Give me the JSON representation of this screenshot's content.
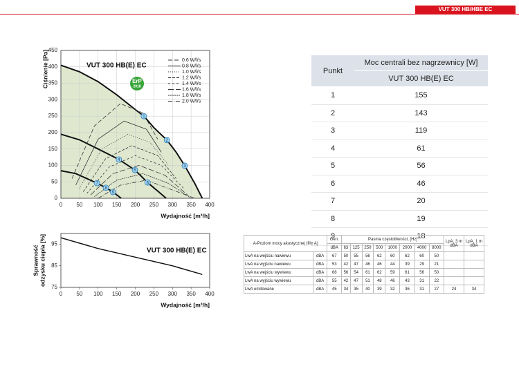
{
  "header": {
    "title": "VUT 300 HB/HBE EC"
  },
  "chart_data": [
    {
      "type": "line",
      "title": "VUT 300 HB(E) EC",
      "x_label": "Wydajność [m³/h]",
      "y_label": "Ciśnienie [Pa]",
      "badge": [
        "ErP",
        "2018"
      ],
      "xlim": [
        0,
        400
      ],
      "ylim": [
        0,
        450
      ],
      "xticks": [
        0,
        50,
        100,
        150,
        200,
        250,
        300,
        350,
        400
      ],
      "yticks": [
        0,
        50,
        100,
        150,
        200,
        250,
        300,
        350,
        400,
        450
      ],
      "grid": true,
      "area_color": "#dfe8cf",
      "curves": [
        {
          "color": "#111111",
          "x": [
            0,
            50,
            100,
            150,
            200,
            223,
            250,
            285,
            310,
            333,
            360,
            380
          ],
          "values": [
            405,
            385,
            355,
            315,
            270,
            250,
            215,
            177,
            140,
            99,
            45,
            0
          ]
        },
        {
          "color": "#111111",
          "x": [
            0,
            50,
            100,
            156,
            199,
            233,
            260,
            283
          ],
          "values": [
            195,
            178,
            150,
            118,
            86,
            48,
            22,
            0
          ]
        },
        {
          "color": "#111111",
          "x": [
            0,
            40,
            97,
            121,
            140,
            162
          ],
          "values": [
            84,
            75,
            46,
            32,
            19,
            0
          ]
        }
      ],
      "series": [
        {
          "name": "0.6 W/l/s",
          "color": "#333333",
          "dash": "6 3",
          "x": [
            30,
            90,
            160,
            220,
            260
          ],
          "values": [
            60,
            220,
            288,
            260,
            180
          ]
        },
        {
          "name": "0.8 W/l/s",
          "color": "#333333",
          "dash": "",
          "x": [
            40,
            100,
            170,
            230,
            270
          ],
          "values": [
            40,
            180,
            235,
            210,
            140
          ]
        },
        {
          "name": "1.0 W/l/s",
          "color": "#333333",
          "dash": "1 2",
          "x": [
            50,
            110,
            180,
            240,
            290
          ],
          "values": [
            30,
            150,
            195,
            170,
            100
          ]
        },
        {
          "name": "1.2 W/l/s",
          "color": "#333333",
          "dash": "4 2",
          "x": [
            60,
            120,
            190,
            260,
            310
          ],
          "values": [
            20,
            120,
            160,
            130,
            60
          ]
        },
        {
          "name": "1.4 W/l/s",
          "color": "#333333",
          "dash": "3 3",
          "x": [
            70,
            130,
            200,
            270,
            330
          ],
          "values": [
            15,
            95,
            130,
            100,
            30
          ]
        },
        {
          "name": "1.6 W/l/s",
          "color": "#333333",
          "dash": "8 3",
          "x": [
            80,
            140,
            210,
            280,
            340
          ],
          "values": [
            10,
            75,
            100,
            70,
            10
          ]
        },
        {
          "name": "1.8 W/l/s",
          "color": "#333333",
          "dash": "2 1",
          "x": [
            90,
            150,
            220,
            290,
            350
          ],
          "values": [
            5,
            55,
            75,
            45,
            0
          ]
        },
        {
          "name": "2.0 W/l/s",
          "color": "#333333",
          "dash": "6 2 1 2",
          "x": [
            100,
            160,
            230,
            300,
            360
          ],
          "values": [
            0,
            40,
            55,
            25,
            0
          ]
        }
      ],
      "points": [
        {
          "label": "1",
          "x": 223,
          "y": 250
        },
        {
          "label": "2",
          "x": 285,
          "y": 177
        },
        {
          "label": "3",
          "x": 333,
          "y": 99
        },
        {
          "label": "4",
          "x": 156,
          "y": 118
        },
        {
          "label": "5",
          "x": 199,
          "y": 86
        },
        {
          "label": "6",
          "x": 233,
          "y": 48
        },
        {
          "label": "7",
          "x": 97,
          "y": 46
        },
        {
          "label": "8",
          "x": 121,
          "y": 32
        },
        {
          "label": "9",
          "x": 140,
          "y": 19
        }
      ]
    },
    {
      "type": "line",
      "title": "VUT 300 HB(E) EC",
      "x_label": "Wydajność [m³/h]",
      "y_label": [
        "Sprawność",
        "odzysku ciepła [%]"
      ],
      "xlim": [
        0,
        400
      ],
      "ylim": [
        75,
        100
      ],
      "xticks": [
        0,
        50,
        100,
        150,
        200,
        250,
        300,
        350,
        400
      ],
      "yticks": [
        75,
        85,
        95
      ],
      "grid": false,
      "series": [
        {
          "color": "#111111",
          "x": [
            0,
            100,
            200,
            300,
            380
          ],
          "values": [
            98,
            93,
            89,
            85,
            81
          ]
        }
      ]
    }
  ],
  "power_table": {
    "headers": [
      "Punkt",
      "Moc centrali bez nagrzewnicy [W]",
      "VUT 300 HB(E) EC"
    ],
    "rows": [
      [
        1,
        155
      ],
      [
        2,
        143
      ],
      [
        3,
        119
      ],
      [
        4,
        61
      ],
      [
        5,
        56
      ],
      [
        6,
        46
      ],
      [
        7,
        20
      ],
      [
        8,
        19
      ],
      [
        9,
        18
      ]
    ]
  },
  "acoustic_table": {
    "title": "A-Poziom mocy akustycznej (filtr A)",
    "gen": "Gen.",
    "bands_title": "Pasma częstotliwości, [Hz]",
    "lpa3": "LpA, 3 m dBA",
    "lpa1": "LpA, 1 m dBA",
    "unit_header": "dBA",
    "bands": [
      63,
      125,
      250,
      500,
      1000,
      2000,
      4000,
      8000
    ],
    "rows": [
      {
        "label": "LwA na wejściu nawiewu",
        "unit": "dBA",
        "values": [
          67,
          50,
          55,
          56,
          62,
          60,
          62,
          60,
          50
        ]
      },
      {
        "label": "LwA na wyjściu nawiewu",
        "unit": "dBA",
        "values": [
          53,
          42,
          47,
          46,
          46,
          44,
          39,
          29,
          21
        ]
      },
      {
        "label": "LwA na wejściu wywiewu",
        "unit": "dBA",
        "values": [
          68,
          56,
          54,
          61,
          62,
          59,
          61,
          56,
          50
        ]
      },
      {
        "label": "LwA na wyjściu wywiewu",
        "unit": "dBA",
        "values": [
          55,
          42,
          47,
          51,
          48,
          46,
          43,
          31,
          22
        ]
      },
      {
        "label": "LwA emitowane",
        "unit": "dBA",
        "values": [
          45,
          34,
          35,
          40,
          39,
          32,
          36,
          31,
          27
        ],
        "lpa": [
          24,
          34
        ]
      }
    ]
  }
}
